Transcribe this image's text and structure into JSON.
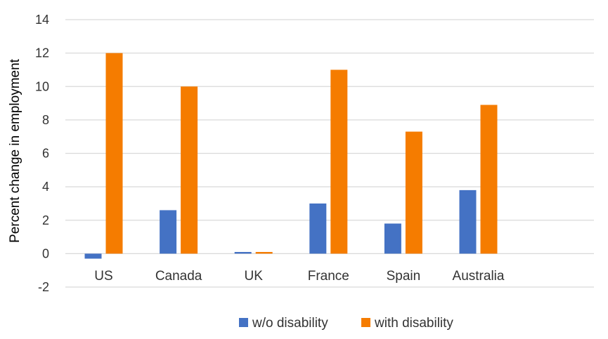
{
  "chart_data": {
    "type": "bar",
    "title": "",
    "xlabel": "",
    "ylabel": "Percent change in employment",
    "ylim": [
      -2,
      14
    ],
    "yticks": [
      -2,
      0,
      2,
      4,
      6,
      8,
      10,
      12,
      14
    ],
    "grid": true,
    "legend_position": "bottom",
    "categories": [
      "US",
      "Canada",
      "UK",
      "France",
      "Spain",
      "Australia"
    ],
    "series": [
      {
        "name": "w/o disability",
        "color": "#4472C4",
        "values": [
          -0.3,
          2.6,
          0.1,
          3.0,
          1.8,
          3.8
        ]
      },
      {
        "name": "with disability",
        "color": "#F57C00",
        "values": [
          12.0,
          10.0,
          0.1,
          11.0,
          7.3,
          8.9
        ]
      }
    ]
  }
}
